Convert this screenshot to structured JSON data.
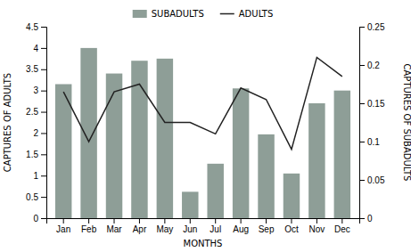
{
  "chart_data": {
    "type": "bar",
    "xlabel": "MONTHS",
    "ylabel": "CAPTURES OF ADULTS",
    "y2label": "CAPTURES OF SUBADULTS",
    "categories": [
      "Jan",
      "Feb",
      "Mar",
      "Apr",
      "May",
      "Jun",
      "Jul",
      "Aug",
      "Sep",
      "Oct",
      "Nov",
      "Dec"
    ],
    "series": [
      {
        "name": "SUBADULTS",
        "type": "bar",
        "color": "#8e9e97",
        "values": [
          3.15,
          4.0,
          3.4,
          3.7,
          3.75,
          0.62,
          1.28,
          3.05,
          1.97,
          1.05,
          2.7,
          3.0
        ]
      },
      {
        "name": "ADULTS",
        "type": "line",
        "color": "#222222",
        "axis": "y2",
        "values": [
          0.165,
          0.1,
          0.165,
          0.175,
          0.125,
          0.125,
          0.11,
          0.17,
          0.155,
          0.09,
          0.21,
          0.185
        ]
      }
    ],
    "ylim": [
      0,
      4.5
    ],
    "yticks": [
      0,
      0.5,
      1,
      1.5,
      2,
      2.5,
      3,
      3.5,
      4,
      4.5
    ],
    "y2lim": [
      0,
      0.25
    ],
    "y2ticks": [
      0,
      0.05,
      0.1,
      0.15,
      0.2,
      0.25
    ],
    "grid": false,
    "legend": "top"
  }
}
